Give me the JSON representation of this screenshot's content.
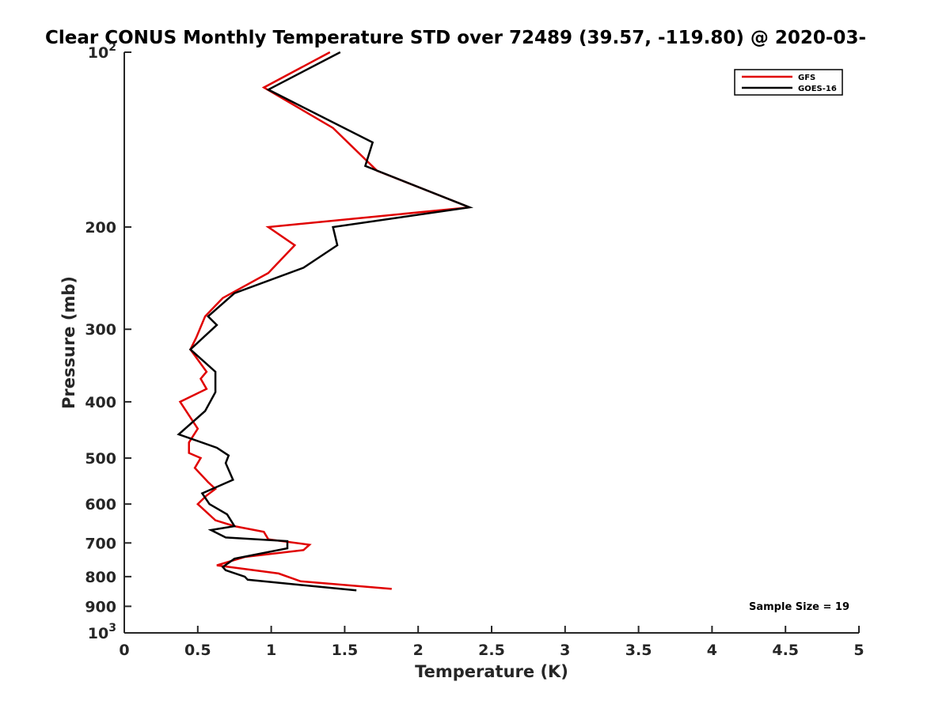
{
  "chart_data": {
    "type": "line",
    "title": "Clear CONUS Monthly Temperature STD over 72489 (39.57, -119.80) @ 2020-03-",
    "xlabel": "Temperature (K)",
    "ylabel": "Pressure (mb)",
    "xlim": [
      0,
      5
    ],
    "ylim": [
      100,
      1000
    ],
    "y_scale": "log",
    "y_reversed": true,
    "grid": false,
    "legend_position": "top-right",
    "x_ticks": [
      "0",
      "0.5",
      "1",
      "1.5",
      "2",
      "2.5",
      "3",
      "3.5",
      "4",
      "4.5",
      "5"
    ],
    "x_tick_values": [
      0,
      0.5,
      1,
      1.5,
      2,
      2.5,
      3,
      3.5,
      4,
      4.5,
      5
    ],
    "y_ticks": [
      {
        "value": 100,
        "base": "10",
        "exp": "2"
      },
      {
        "value": 200,
        "label": "200"
      },
      {
        "value": 300,
        "label": "300"
      },
      {
        "value": 400,
        "label": "400"
      },
      {
        "value": 500,
        "label": "500"
      },
      {
        "value": 600,
        "label": "600"
      },
      {
        "value": 700,
        "label": "700"
      },
      {
        "value": 800,
        "label": "800"
      },
      {
        "value": 900,
        "label": "900"
      },
      {
        "value": 1000,
        "base": "10",
        "exp": "3"
      }
    ],
    "annotation": "Sample Size = 19",
    "series": [
      {
        "name": "GFS",
        "color": "#e00000",
        "points": [
          [
            1.4,
            100
          ],
          [
            0.95,
            115
          ],
          [
            1.42,
            135
          ],
          [
            1.72,
            160
          ],
          [
            2.35,
            185
          ],
          [
            0.98,
            200
          ],
          [
            1.16,
            215
          ],
          [
            0.98,
            240
          ],
          [
            0.67,
            265
          ],
          [
            0.55,
            285
          ],
          [
            0.49,
            310
          ],
          [
            0.45,
            325
          ],
          [
            0.56,
            355
          ],
          [
            0.52,
            365
          ],
          [
            0.56,
            380
          ],
          [
            0.38,
            400
          ],
          [
            0.5,
            445
          ],
          [
            0.44,
            470
          ],
          [
            0.44,
            490
          ],
          [
            0.52,
            500
          ],
          [
            0.48,
            520
          ],
          [
            0.57,
            550
          ],
          [
            0.62,
            565
          ],
          [
            0.56,
            580
          ],
          [
            0.5,
            600
          ],
          [
            0.62,
            640
          ],
          [
            0.75,
            655
          ],
          [
            0.95,
            670
          ],
          [
            0.98,
            690
          ],
          [
            1.26,
            705
          ],
          [
            1.22,
            720
          ],
          [
            0.82,
            740
          ],
          [
            0.63,
            765
          ],
          [
            0.8,
            775
          ],
          [
            1.05,
            790
          ],
          [
            1.2,
            815
          ],
          [
            1.82,
            840
          ]
        ]
      },
      {
        "name": "GOES-16",
        "color": "#000000",
        "points": [
          [
            1.47,
            100
          ],
          [
            0.98,
            116
          ],
          [
            1.69,
            143
          ],
          [
            1.64,
            157
          ],
          [
            2.35,
            185
          ],
          [
            1.42,
            200
          ],
          [
            1.45,
            215
          ],
          [
            1.22,
            235
          ],
          [
            0.75,
            260
          ],
          [
            0.57,
            285
          ],
          [
            0.63,
            295
          ],
          [
            0.45,
            325
          ],
          [
            0.62,
            355
          ],
          [
            0.62,
            385
          ],
          [
            0.55,
            415
          ],
          [
            0.37,
            455
          ],
          [
            0.63,
            480
          ],
          [
            0.71,
            495
          ],
          [
            0.69,
            510
          ],
          [
            0.74,
            545
          ],
          [
            0.53,
            575
          ],
          [
            0.58,
            600
          ],
          [
            0.7,
            625
          ],
          [
            0.75,
            655
          ],
          [
            0.59,
            665
          ],
          [
            0.69,
            685
          ],
          [
            1.11,
            695
          ],
          [
            1.11,
            715
          ],
          [
            0.75,
            745
          ],
          [
            0.67,
            770
          ],
          [
            0.69,
            780
          ],
          [
            0.82,
            800
          ],
          [
            0.84,
            810
          ],
          [
            1.58,
            845
          ]
        ]
      }
    ]
  }
}
